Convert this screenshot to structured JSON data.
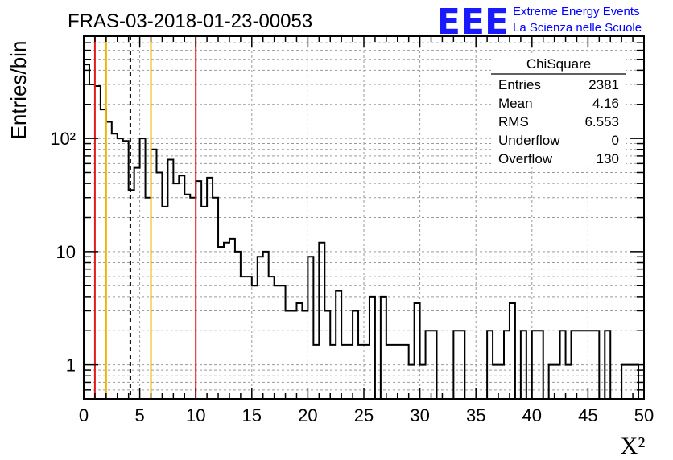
{
  "header": {
    "title": "FRAS-03-2018-01-23-00053",
    "logo_text": "EEE",
    "logo_line1": "Extreme Energy Events",
    "logo_line2": "La Scienza nelle Scuole"
  },
  "stats_box": {
    "title": "ChiSquare",
    "rows": [
      {
        "label": "Entries",
        "value": "2381"
      },
      {
        "label": "Mean",
        "value": "4.16"
      },
      {
        "label": "RMS",
        "value": "6.553"
      },
      {
        "label": "Underflow",
        "value": "0"
      },
      {
        "label": "Overflow",
        "value": "130"
      }
    ]
  },
  "chart_data": {
    "type": "histogram",
    "xlabel": "X²",
    "ylabel": "Entries/bin",
    "xlim": [
      0,
      50
    ],
    "ylim": [
      0.5,
      800
    ],
    "y_scale": "log",
    "grid": true,
    "bin_width": 0.5,
    "x_ticks": [
      "0",
      "5",
      "10",
      "15",
      "20",
      "25",
      "30",
      "35",
      "40",
      "45",
      "50"
    ],
    "y_ticks": [
      {
        "value": 1,
        "label": "1"
      },
      {
        "value": 10,
        "label": "10"
      },
      {
        "value": 100,
        "label": "10²"
      }
    ],
    "counts": [
      450,
      300,
      290,
      180,
      140,
      110,
      100,
      95,
      35,
      55,
      100,
      30,
      80,
      50,
      25,
      65,
      40,
      47,
      32,
      30,
      42,
      25,
      45,
      30,
      11,
      12,
      13,
      10,
      6,
      6,
      5,
      9,
      10,
      6,
      5,
      5,
      3,
      3,
      3.5,
      3,
      9,
      1.5,
      12,
      3,
      1.5,
      4.5,
      1.5,
      1.5,
      3,
      1.5,
      1.5,
      4,
      0.4,
      4,
      1.5,
      1.5,
      1.5,
      1.5,
      1,
      3.5,
      1,
      2,
      2,
      0.4,
      0.4,
      0.4,
      2,
      2,
      0.4,
      0.4,
      0.4,
      0.4,
      2,
      1,
      1,
      2,
      3.5,
      0.4,
      2,
      0.4,
      2,
      2,
      0.4,
      1,
      1,
      2,
      1,
      2,
      2,
      2,
      2,
      2,
      0.4,
      2,
      0.4,
      0.4,
      1,
      1,
      1,
      0.4
    ],
    "vertical_lines": [
      {
        "x": 1,
        "color": "#e31a1c",
        "style": "solid"
      },
      {
        "x": 2,
        "color": "#f0b400",
        "style": "solid"
      },
      {
        "x": 4.16,
        "color": "#000000",
        "style": "dashed"
      },
      {
        "x": 6,
        "color": "#f0b400",
        "style": "solid"
      },
      {
        "x": 10,
        "color": "#e31a1c",
        "style": "solid"
      }
    ]
  }
}
